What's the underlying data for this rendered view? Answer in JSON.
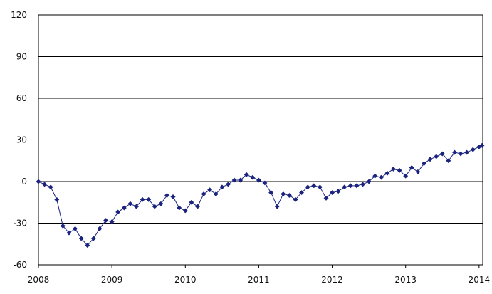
{
  "chart_data": {
    "type": "line",
    "title": "",
    "xlabel": "",
    "ylabel": "",
    "xlim": [
      2008.0,
      2014.05
    ],
    "ylim": [
      -60,
      120
    ],
    "grid": true,
    "legend": "none",
    "yticks": [
      {
        "value": 120,
        "label": "120"
      },
      {
        "value": 90,
        "label": "90"
      },
      {
        "value": 60,
        "label": "60"
      },
      {
        "value": 30,
        "label": "30"
      },
      {
        "value": 0,
        "label": "0"
      },
      {
        "value": -30,
        "label": "-30"
      },
      {
        "value": -60,
        "label": "-60"
      }
    ],
    "xticks": [
      {
        "value": 2008,
        "label": "2008"
      },
      {
        "value": 2009,
        "label": "2009"
      },
      {
        "value": 2010,
        "label": "2010"
      },
      {
        "value": 2011,
        "label": "2011"
      },
      {
        "value": 2012,
        "label": "2012"
      },
      {
        "value": 2013,
        "label": "2013"
      },
      {
        "value": 2014,
        "label": "2014"
      }
    ],
    "series": [
      {
        "color": "#1a237e",
        "marker": "diamond",
        "x": [
          2008.0,
          2008.083,
          2008.167,
          2008.25,
          2008.333,
          2008.417,
          2008.5,
          2008.583,
          2008.667,
          2008.75,
          2008.833,
          2008.917,
          2009.0,
          2009.083,
          2009.167,
          2009.25,
          2009.333,
          2009.417,
          2009.5,
          2009.583,
          2009.667,
          2009.75,
          2009.833,
          2009.917,
          2010.0,
          2010.083,
          2010.167,
          2010.25,
          2010.333,
          2010.417,
          2010.5,
          2010.583,
          2010.667,
          2010.75,
          2010.833,
          2010.917,
          2011.0,
          2011.083,
          2011.167,
          2011.25,
          2011.333,
          2011.417,
          2011.5,
          2011.583,
          2011.667,
          2011.75,
          2011.833,
          2011.917,
          2012.0,
          2012.083,
          2012.167,
          2012.25,
          2012.333,
          2012.417,
          2012.5,
          2012.583,
          2012.667,
          2012.75,
          2012.833,
          2012.917,
          2013.0,
          2013.083,
          2013.167,
          2013.25,
          2013.333,
          2013.417,
          2013.5,
          2013.583,
          2013.667,
          2013.75,
          2013.833,
          2013.917,
          2014.0,
          2014.04
        ],
        "y": [
          0,
          -2,
          -4,
          -13,
          -32,
          -37,
          -34,
          -41,
          -46,
          -41,
          -34,
          -28,
          -29,
          -22,
          -19,
          -16,
          -18,
          -13,
          -13,
          -18,
          -16,
          -10,
          -11,
          -19,
          -21,
          -15,
          -18,
          -9,
          -6,
          -9,
          -4,
          -2,
          1,
          1,
          5,
          3,
          1,
          -1,
          -8,
          -18,
          -9,
          -10,
          -13,
          -8,
          -4,
          -3,
          -4,
          -12,
          -8,
          -7,
          -4,
          -3,
          -3,
          -2,
          0,
          4,
          3,
          6,
          9,
          8,
          4,
          10,
          7,
          13,
          16,
          18,
          20,
          15,
          21,
          20,
          21,
          23,
          25,
          26
        ]
      }
    ]
  }
}
